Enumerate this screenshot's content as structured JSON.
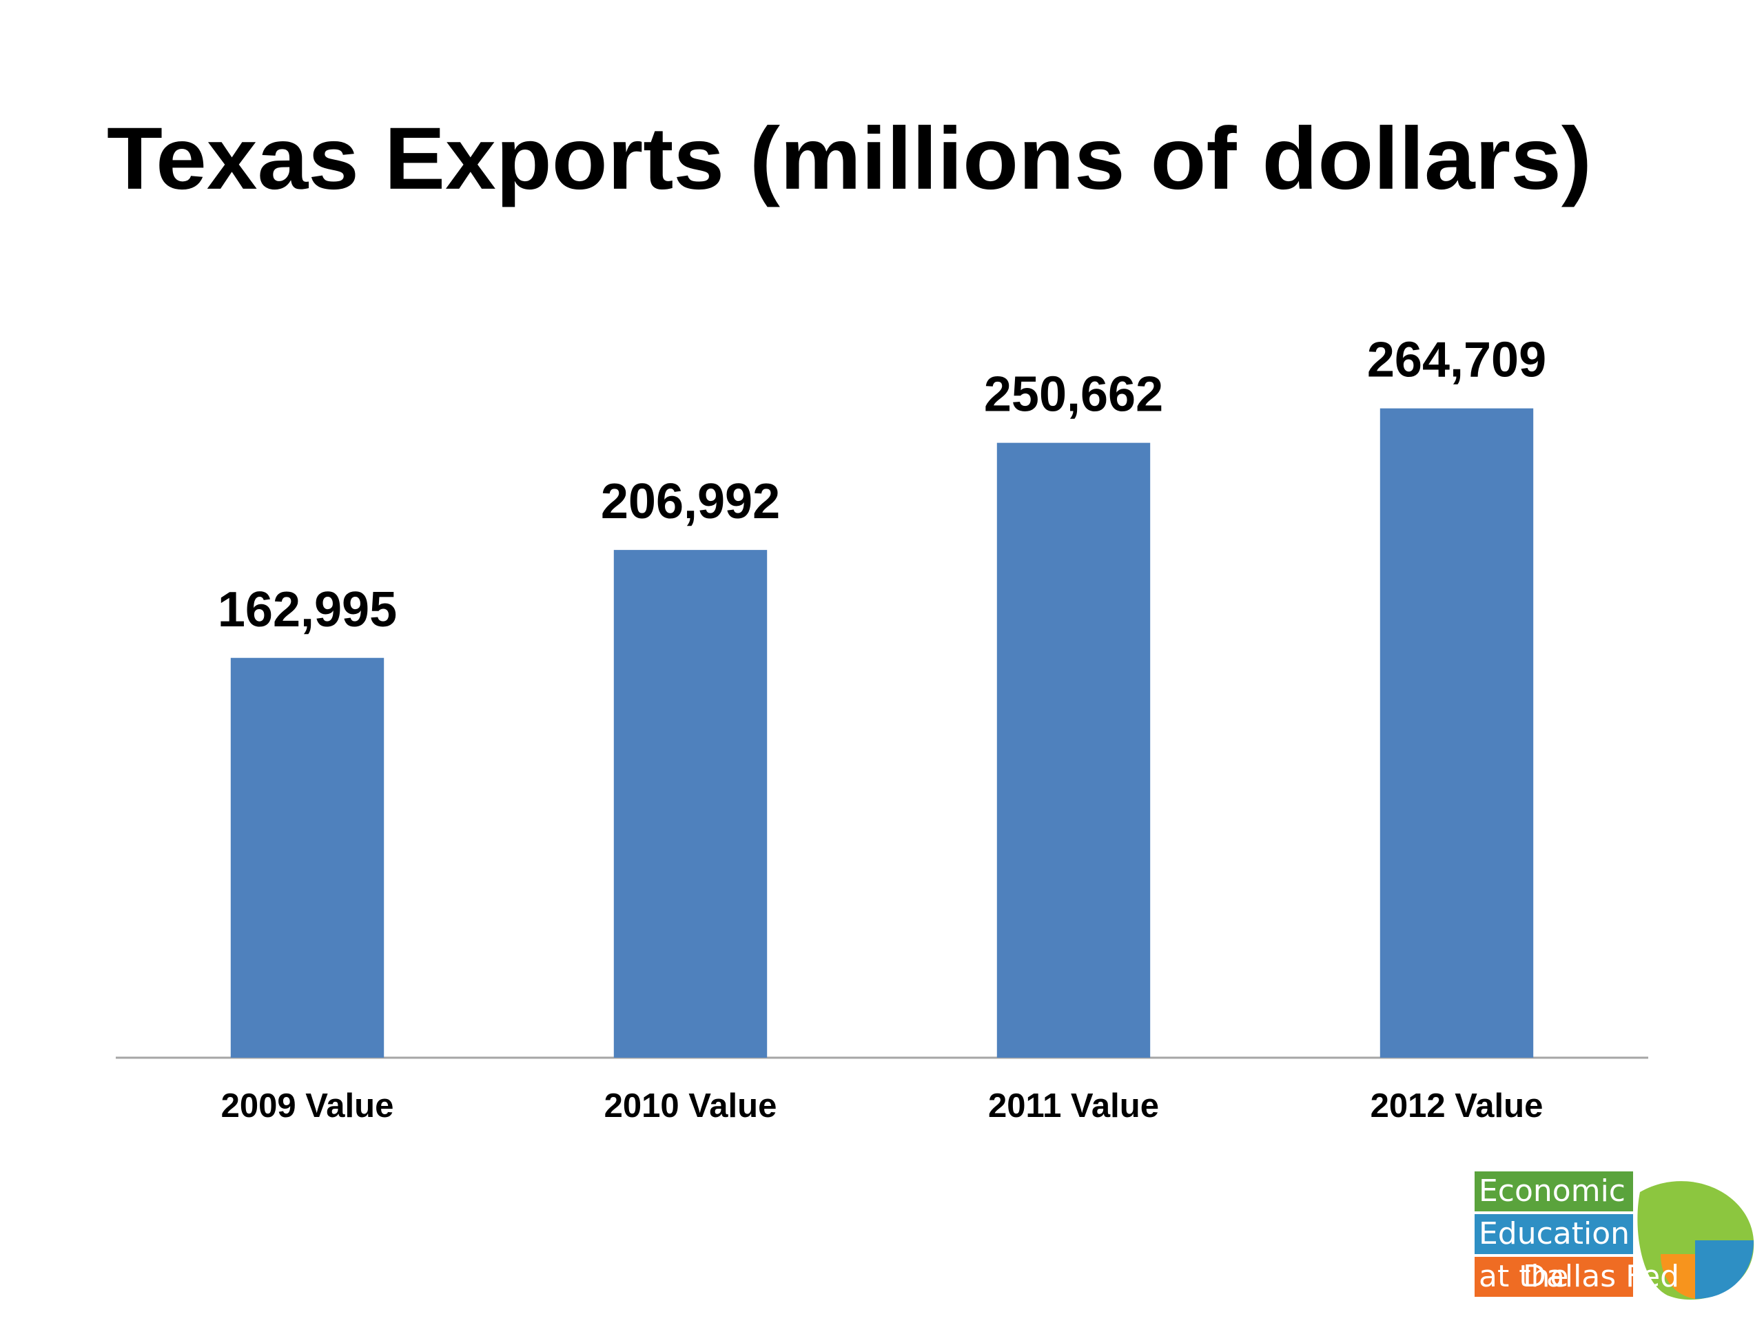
{
  "chart_data": {
    "type": "bar",
    "title": "Texas Exports (millions of dollars)",
    "categories": [
      "2009 Value",
      "2010 Value",
      "2011 Value",
      "2012 Value"
    ],
    "values": [
      162995,
      206992,
      250662,
      264709
    ],
    "value_labels": [
      "162,995",
      "206,992",
      "250,662",
      "264,709"
    ],
    "color": "#4f81bd",
    "ylim": [
      0,
      300000
    ]
  },
  "logo": {
    "line1": "Economic",
    "line2": "Education",
    "line3a": "at the",
    "line3b": "Dallas Fed"
  }
}
